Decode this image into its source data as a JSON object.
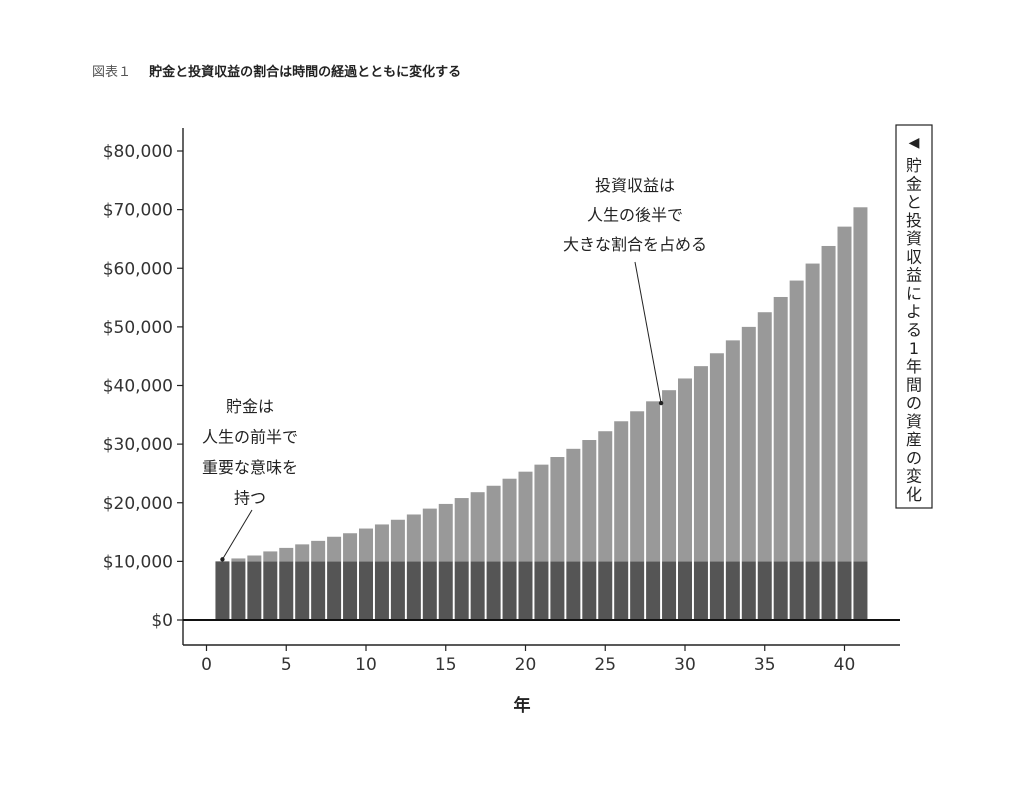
{
  "figure": {
    "number": "図表１",
    "title": "貯金と投資収益の割合は時間の経過とともに変化する"
  },
  "chart_data": {
    "type": "bar",
    "stacked": true,
    "xlabel": "年",
    "ylim": [
      0,
      80000
    ],
    "yticks": [
      "$0",
      "$10,000",
      "$20,000",
      "$30,000",
      "$40,000",
      "$50,000",
      "$60,000",
      "$70,000",
      "$80,000"
    ],
    "ytick_values": [
      0,
      10000,
      20000,
      30000,
      40000,
      50000,
      60000,
      70000,
      80000
    ],
    "xlim": [
      -1.5,
      43.5
    ],
    "xticks": [
      "0",
      "5",
      "10",
      "15",
      "20",
      "25",
      "30",
      "35",
      "40"
    ],
    "xtick_values": [
      0,
      5,
      10,
      15,
      20,
      25,
      30,
      35,
      40
    ],
    "grid": false,
    "x": [
      1,
      2,
      3,
      4,
      5,
      6,
      7,
      8,
      9,
      10,
      11,
      12,
      13,
      14,
      15,
      16,
      17,
      18,
      19,
      20,
      21,
      22,
      23,
      24,
      25,
      26,
      27,
      28,
      29,
      30,
      31,
      32,
      33,
      34,
      35,
      36,
      37,
      38,
      39,
      40,
      41
    ],
    "series": [
      {
        "color": "#555555",
        "values": [
          10000,
          10000,
          10000,
          10000,
          10000,
          10000,
          10000,
          10000,
          10000,
          10000,
          10000,
          10000,
          10000,
          10000,
          10000,
          10000,
          10000,
          10000,
          10000,
          10000,
          10000,
          10000,
          10000,
          10000,
          10000,
          10000,
          10000,
          10000,
          10000,
          10000,
          10000,
          10000,
          10000,
          10000,
          10000,
          10000,
          10000,
          10000,
          10000,
          10000,
          10000
        ]
      },
      {
        "color": "#999999",
        "values": [
          0,
          500,
          1000,
          1700,
          2300,
          2900,
          3500,
          4200,
          4800,
          5600,
          6300,
          7100,
          8000,
          9000,
          9800,
          10800,
          11800,
          12900,
          14100,
          15300,
          16500,
          17800,
          19200,
          20700,
          22200,
          23900,
          25600,
          27300,
          29200,
          31200,
          33300,
          35500,
          37700,
          40000,
          42500,
          45100,
          47900,
          50800,
          53800,
          57100,
          60400
        ]
      }
    ],
    "annotations": [
      {
        "text": "投資収益は\n人生の後半で\n大きな割合を占める",
        "x": 28.5,
        "y": 37000
      },
      {
        "text": "貯金は\n人生の前半で\n重要な意味を\n持つ",
        "x": 1,
        "y": 10000
      }
    ],
    "legend_box": {
      "marker": "◀",
      "text": "貯金と投資収益による1年間の資産の変化",
      "placement": "right"
    }
  }
}
